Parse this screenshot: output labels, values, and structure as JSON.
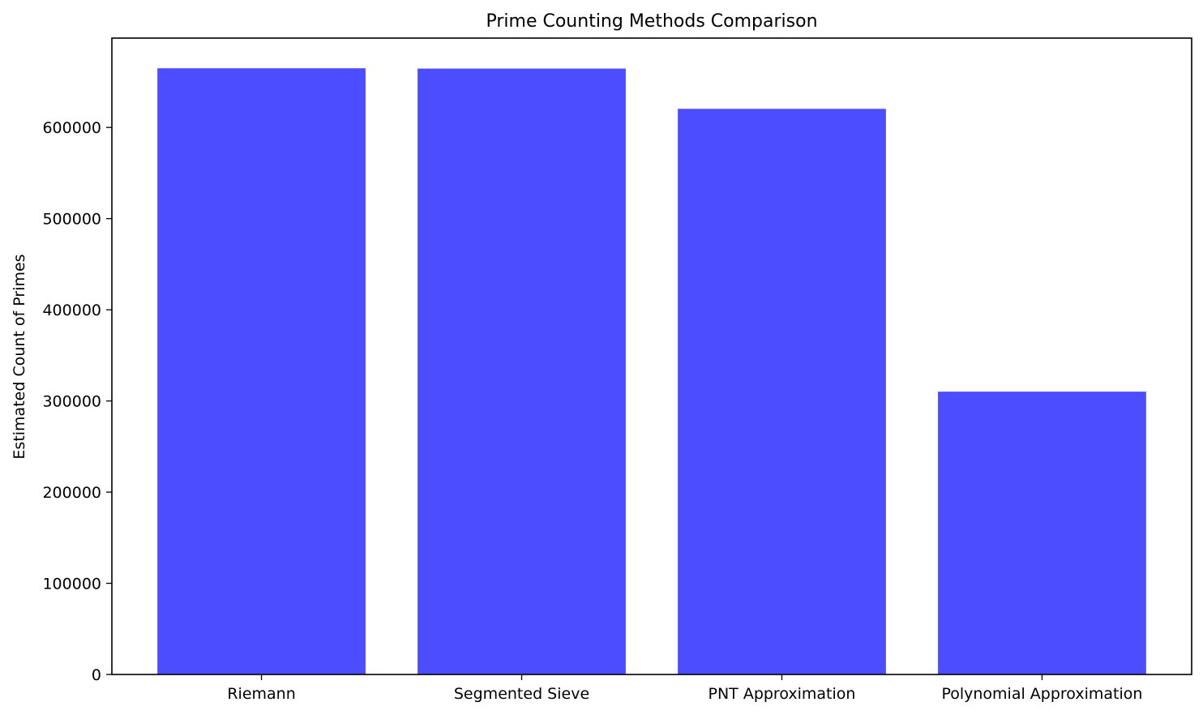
{
  "chart_data": {
    "type": "bar",
    "title": "Prime Counting Methods Comparison",
    "xlabel": "",
    "ylabel": "Estimated Count of Primes",
    "categories": [
      "Riemann",
      "Segmented Sieve",
      "PNT Approximation",
      "Polynomial Approximation"
    ],
    "values": [
      664918,
      664579,
      620420,
      310210
    ],
    "ylim": [
      0,
      698000
    ],
    "yticks": [
      0,
      100000,
      200000,
      300000,
      400000,
      500000,
      600000
    ],
    "ytick_labels": [
      "0",
      "100000",
      "200000",
      "300000",
      "400000",
      "500000",
      "600000"
    ],
    "bar_color": "#4b4dff",
    "grid": false,
    "legend": "none"
  }
}
